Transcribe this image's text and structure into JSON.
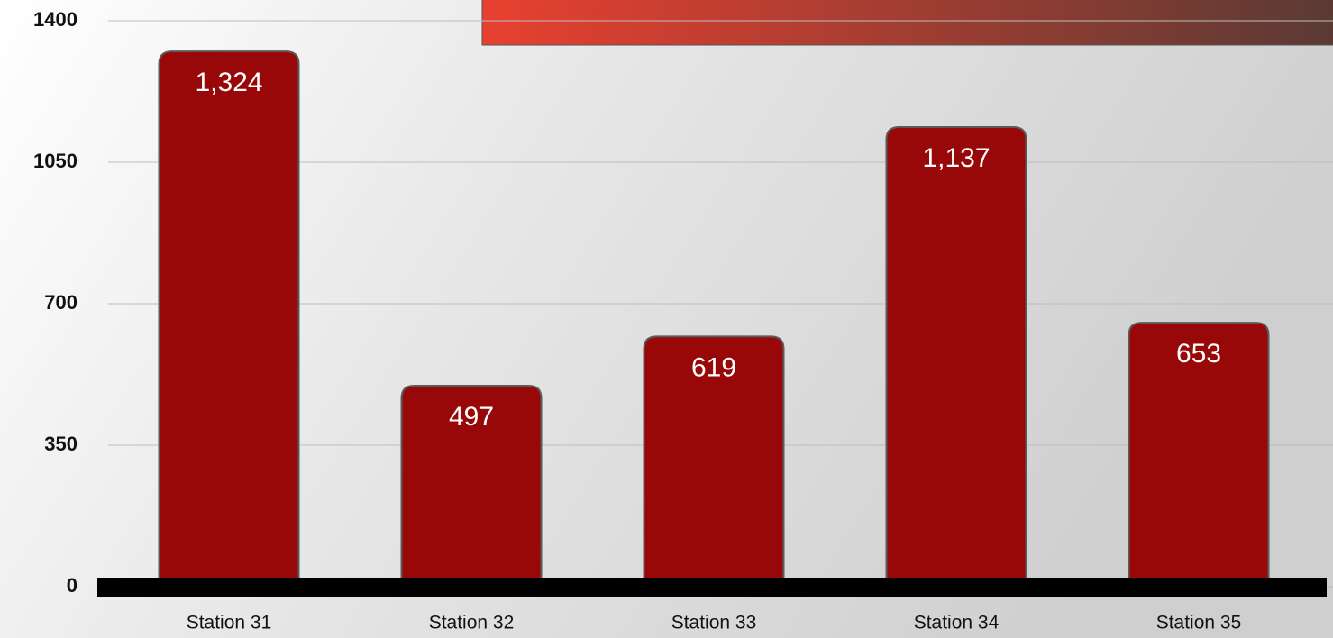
{
  "chart_data": {
    "type": "bar",
    "categories": [
      "Station 31",
      "Station 32",
      "Station 33",
      "Station 34",
      "Station 35"
    ],
    "values": [
      1324,
      497,
      619,
      1137,
      653
    ],
    "value_labels": [
      "1,324",
      "497",
      "619",
      "1,137",
      "653"
    ],
    "color": "#990808",
    "ylim": [
      0,
      1400
    ],
    "yticks": [
      0,
      350,
      700,
      1050,
      1400
    ],
    "grid": true
  }
}
